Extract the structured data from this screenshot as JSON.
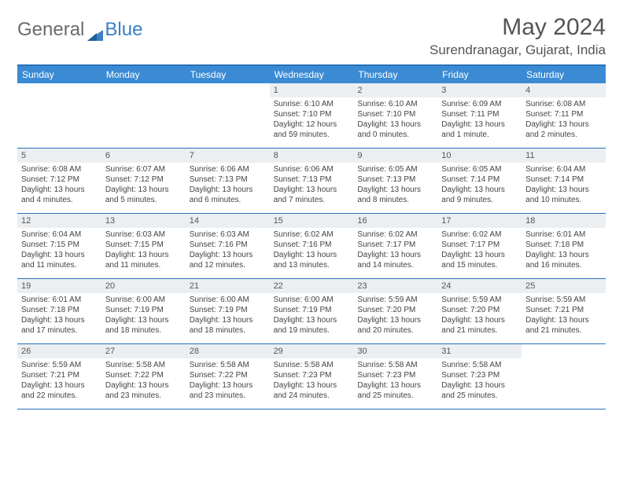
{
  "logo": {
    "text1": "General",
    "text2": "Blue"
  },
  "title": "May 2024",
  "location": "Surendranagar, Gujarat, India",
  "colors": {
    "header_bg": "#3b8bd4",
    "border": "#2a71b8",
    "daynum_bg": "#eceff1",
    "text": "#444444",
    "logo_gray": "#6b6b6b",
    "logo_blue": "#3b7fc4"
  },
  "weekdays": [
    "Sunday",
    "Monday",
    "Tuesday",
    "Wednesday",
    "Thursday",
    "Friday",
    "Saturday"
  ],
  "weeks": [
    [
      {
        "num": "",
        "lines": []
      },
      {
        "num": "",
        "lines": []
      },
      {
        "num": "",
        "lines": []
      },
      {
        "num": "1",
        "lines": [
          "Sunrise: 6:10 AM",
          "Sunset: 7:10 PM",
          "Daylight: 12 hours",
          "and 59 minutes."
        ]
      },
      {
        "num": "2",
        "lines": [
          "Sunrise: 6:10 AM",
          "Sunset: 7:10 PM",
          "Daylight: 13 hours",
          "and 0 minutes."
        ]
      },
      {
        "num": "3",
        "lines": [
          "Sunrise: 6:09 AM",
          "Sunset: 7:11 PM",
          "Daylight: 13 hours",
          "and 1 minute."
        ]
      },
      {
        "num": "4",
        "lines": [
          "Sunrise: 6:08 AM",
          "Sunset: 7:11 PM",
          "Daylight: 13 hours",
          "and 2 minutes."
        ]
      }
    ],
    [
      {
        "num": "5",
        "lines": [
          "Sunrise: 6:08 AM",
          "Sunset: 7:12 PM",
          "Daylight: 13 hours",
          "and 4 minutes."
        ]
      },
      {
        "num": "6",
        "lines": [
          "Sunrise: 6:07 AM",
          "Sunset: 7:12 PM",
          "Daylight: 13 hours",
          "and 5 minutes."
        ]
      },
      {
        "num": "7",
        "lines": [
          "Sunrise: 6:06 AM",
          "Sunset: 7:13 PM",
          "Daylight: 13 hours",
          "and 6 minutes."
        ]
      },
      {
        "num": "8",
        "lines": [
          "Sunrise: 6:06 AM",
          "Sunset: 7:13 PM",
          "Daylight: 13 hours",
          "and 7 minutes."
        ]
      },
      {
        "num": "9",
        "lines": [
          "Sunrise: 6:05 AM",
          "Sunset: 7:13 PM",
          "Daylight: 13 hours",
          "and 8 minutes."
        ]
      },
      {
        "num": "10",
        "lines": [
          "Sunrise: 6:05 AM",
          "Sunset: 7:14 PM",
          "Daylight: 13 hours",
          "and 9 minutes."
        ]
      },
      {
        "num": "11",
        "lines": [
          "Sunrise: 6:04 AM",
          "Sunset: 7:14 PM",
          "Daylight: 13 hours",
          "and 10 minutes."
        ]
      }
    ],
    [
      {
        "num": "12",
        "lines": [
          "Sunrise: 6:04 AM",
          "Sunset: 7:15 PM",
          "Daylight: 13 hours",
          "and 11 minutes."
        ]
      },
      {
        "num": "13",
        "lines": [
          "Sunrise: 6:03 AM",
          "Sunset: 7:15 PM",
          "Daylight: 13 hours",
          "and 11 minutes."
        ]
      },
      {
        "num": "14",
        "lines": [
          "Sunrise: 6:03 AM",
          "Sunset: 7:16 PM",
          "Daylight: 13 hours",
          "and 12 minutes."
        ]
      },
      {
        "num": "15",
        "lines": [
          "Sunrise: 6:02 AM",
          "Sunset: 7:16 PM",
          "Daylight: 13 hours",
          "and 13 minutes."
        ]
      },
      {
        "num": "16",
        "lines": [
          "Sunrise: 6:02 AM",
          "Sunset: 7:17 PM",
          "Daylight: 13 hours",
          "and 14 minutes."
        ]
      },
      {
        "num": "17",
        "lines": [
          "Sunrise: 6:02 AM",
          "Sunset: 7:17 PM",
          "Daylight: 13 hours",
          "and 15 minutes."
        ]
      },
      {
        "num": "18",
        "lines": [
          "Sunrise: 6:01 AM",
          "Sunset: 7:18 PM",
          "Daylight: 13 hours",
          "and 16 minutes."
        ]
      }
    ],
    [
      {
        "num": "19",
        "lines": [
          "Sunrise: 6:01 AM",
          "Sunset: 7:18 PM",
          "Daylight: 13 hours",
          "and 17 minutes."
        ]
      },
      {
        "num": "20",
        "lines": [
          "Sunrise: 6:00 AM",
          "Sunset: 7:19 PM",
          "Daylight: 13 hours",
          "and 18 minutes."
        ]
      },
      {
        "num": "21",
        "lines": [
          "Sunrise: 6:00 AM",
          "Sunset: 7:19 PM",
          "Daylight: 13 hours",
          "and 18 minutes."
        ]
      },
      {
        "num": "22",
        "lines": [
          "Sunrise: 6:00 AM",
          "Sunset: 7:19 PM",
          "Daylight: 13 hours",
          "and 19 minutes."
        ]
      },
      {
        "num": "23",
        "lines": [
          "Sunrise: 5:59 AM",
          "Sunset: 7:20 PM",
          "Daylight: 13 hours",
          "and 20 minutes."
        ]
      },
      {
        "num": "24",
        "lines": [
          "Sunrise: 5:59 AM",
          "Sunset: 7:20 PM",
          "Daylight: 13 hours",
          "and 21 minutes."
        ]
      },
      {
        "num": "25",
        "lines": [
          "Sunrise: 5:59 AM",
          "Sunset: 7:21 PM",
          "Daylight: 13 hours",
          "and 21 minutes."
        ]
      }
    ],
    [
      {
        "num": "26",
        "lines": [
          "Sunrise: 5:59 AM",
          "Sunset: 7:21 PM",
          "Daylight: 13 hours",
          "and 22 minutes."
        ]
      },
      {
        "num": "27",
        "lines": [
          "Sunrise: 5:58 AM",
          "Sunset: 7:22 PM",
          "Daylight: 13 hours",
          "and 23 minutes."
        ]
      },
      {
        "num": "28",
        "lines": [
          "Sunrise: 5:58 AM",
          "Sunset: 7:22 PM",
          "Daylight: 13 hours",
          "and 23 minutes."
        ]
      },
      {
        "num": "29",
        "lines": [
          "Sunrise: 5:58 AM",
          "Sunset: 7:23 PM",
          "Daylight: 13 hours",
          "and 24 minutes."
        ]
      },
      {
        "num": "30",
        "lines": [
          "Sunrise: 5:58 AM",
          "Sunset: 7:23 PM",
          "Daylight: 13 hours",
          "and 25 minutes."
        ]
      },
      {
        "num": "31",
        "lines": [
          "Sunrise: 5:58 AM",
          "Sunset: 7:23 PM",
          "Daylight: 13 hours",
          "and 25 minutes."
        ]
      },
      {
        "num": "",
        "lines": []
      }
    ]
  ]
}
